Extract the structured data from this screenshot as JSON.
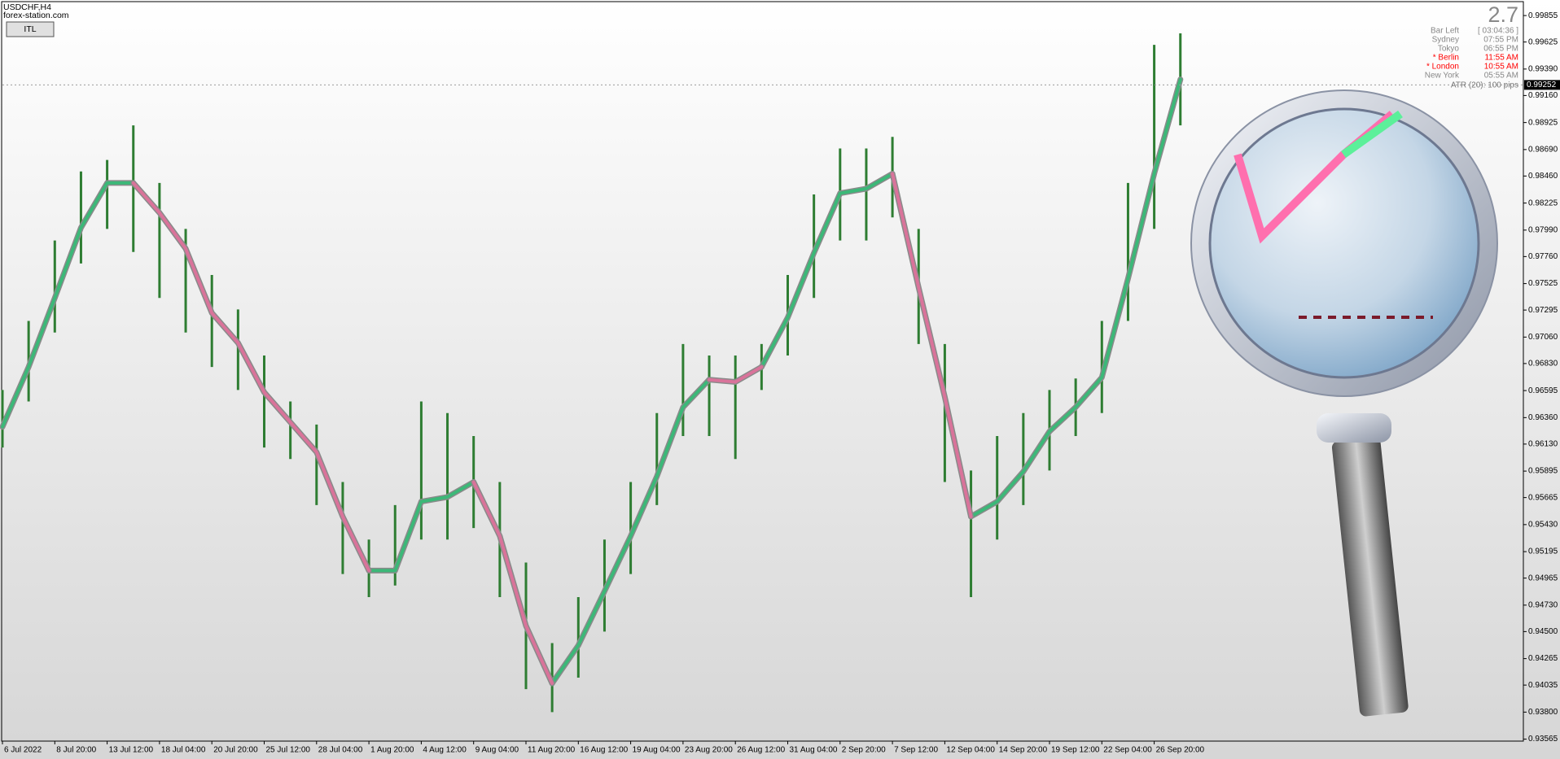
{
  "header": {
    "symbol": "USDCHF,H4",
    "site": "forex-station.com",
    "button": "ITL"
  },
  "info": {
    "big": "2.7",
    "rows": [
      {
        "label": "Bar Left",
        "value": "[ 03:04:36 ]",
        "color": "#888888"
      },
      {
        "label": "Sydney",
        "value": "07:55 PM",
        "color": "#888888"
      },
      {
        "label": "Tokyo",
        "value": "06:55 PM",
        "color": "#888888"
      },
      {
        "label": "* Berlin",
        "value": "11:55 AM",
        "color": "#ff0000"
      },
      {
        "label": "* London",
        "value": "10:55 AM",
        "color": "#ff0000"
      },
      {
        "label": "New York",
        "value": "05:55 AM",
        "color": "#888888"
      }
    ],
    "atr": "ATR (20): 100 pips"
  },
  "chart_data": {
    "type": "line",
    "categories": [
      "6 Jul 2022",
      null,
      "8 Jul 20:00",
      null,
      "13 Jul 12:00",
      null,
      "18 Jul 04:00",
      null,
      "20 Jul 20:00",
      null,
      "25 Jul 12:00",
      null,
      "28 Jul 04:00",
      null,
      "1 Aug 20:00",
      null,
      "4 Aug 12:00",
      null,
      "9 Aug 04:00",
      null,
      "11 Aug 20:00",
      null,
      "16 Aug 12:00",
      null,
      "19 Aug 04:00",
      null,
      "23 Aug 20:00",
      null,
      "26 Aug 12:00",
      null,
      "31 Aug 04:00",
      null,
      "2 Sep 20:00",
      null,
      "7 Sep 12:00",
      null,
      "12 Sep 04:00",
      null,
      "14 Sep 20:00",
      null,
      "19 Sep 12:00",
      null,
      "22 Sep 04:00",
      null,
      "26 Sep 20:00",
      null
    ],
    "highs": [
      0.966,
      0.972,
      0.979,
      0.985,
      0.986,
      0.989,
      0.984,
      0.98,
      0.976,
      0.973,
      0.969,
      0.965,
      0.963,
      0.958,
      0.953,
      0.956,
      0.965,
      0.964,
      0.962,
      0.958,
      0.951,
      0.944,
      0.948,
      0.953,
      0.958,
      0.964,
      0.97,
      0.969,
      0.969,
      0.97,
      0.976,
      0.983,
      0.987,
      0.987,
      0.988,
      0.98,
      0.97,
      0.959,
      0.962,
      0.964,
      0.966,
      0.967,
      0.972,
      0.984,
      0.996,
      0.997
    ],
    "lows": [
      0.961,
      0.965,
      0.971,
      0.977,
      0.98,
      0.978,
      0.974,
      0.971,
      0.968,
      0.966,
      0.961,
      0.96,
      0.956,
      0.95,
      0.948,
      0.949,
      0.953,
      0.953,
      0.954,
      0.948,
      0.94,
      0.938,
      0.941,
      0.945,
      0.95,
      0.956,
      0.962,
      0.962,
      0.96,
      0.966,
      0.969,
      0.974,
      0.979,
      0.979,
      0.981,
      0.97,
      0.958,
      0.948,
      0.953,
      0.956,
      0.959,
      0.962,
      0.964,
      0.972,
      0.98,
      0.989
    ],
    "range_color": "#2e7d32",
    "series": [
      {
        "color": "#3cb878",
        "values": [
          0.9628,
          0.968,
          0.974,
          0.9801,
          0.984,
          0.984,
          null,
          null,
          null,
          null,
          null,
          null,
          null,
          null,
          0.9503,
          0.9503,
          0.9563,
          0.9567,
          0.958,
          null,
          null,
          0.9405,
          0.9438,
          0.9485,
          0.9533,
          0.9585,
          0.9645,
          0.9669,
          null,
          0.968,
          0.9723,
          0.9779,
          0.9831,
          0.9835,
          0.9848,
          null,
          null,
          0.955,
          0.9563,
          0.9589,
          0.9624,
          0.9645,
          0.9671,
          0.9757,
          0.9848,
          0.993
        ]
      },
      {
        "color": "#d9739a",
        "values": [
          null,
          null,
          null,
          null,
          null,
          0.984,
          0.9814,
          0.9783,
          0.9727,
          0.9701,
          0.9658,
          0.9632,
          0.9606,
          0.955,
          0.9503,
          null,
          null,
          null,
          0.958,
          0.9533,
          0.9455,
          0.9405,
          null,
          null,
          null,
          null,
          null,
          0.9669,
          0.9667,
          0.968,
          null,
          null,
          null,
          null,
          0.9848,
          0.9749,
          0.9654,
          0.955,
          null,
          null,
          null,
          null,
          null,
          null,
          null,
          null
        ]
      }
    ],
    "last_price": 0.99252,
    "ylim": [
      0.93548,
      0.99976
    ],
    "yticks": [
      {
        "value": 0.99855,
        "label": "0.99855"
      },
      {
        "value": 0.99625,
        "label": "0.99625"
      },
      {
        "value": 0.9939,
        "label": "0.99390"
      },
      {
        "value": 0.9916,
        "label": "0.99160"
      },
      {
        "value": 0.98925,
        "label": "0.98925"
      },
      {
        "value": 0.9869,
        "label": "0.98690"
      },
      {
        "value": 0.9846,
        "label": "0.98460"
      },
      {
        "value": 0.98225,
        "label": "0.98225"
      },
      {
        "value": 0.9799,
        "label": "0.97990"
      },
      {
        "value": 0.9776,
        "label": "0.97760"
      },
      {
        "value": 0.97525,
        "label": "0.97525"
      },
      {
        "value": 0.97295,
        "label": "0.97295"
      },
      {
        "value": 0.9706,
        "label": "0.97060"
      },
      {
        "value": 0.9683,
        "label": "0.96830"
      },
      {
        "value": 0.96595,
        "label": "0.96595"
      },
      {
        "value": 0.9636,
        "label": "0.96360"
      },
      {
        "value": 0.9613,
        "label": "0.96130"
      },
      {
        "value": 0.95895,
        "label": "0.95895"
      },
      {
        "value": 0.95665,
        "label": "0.95665"
      },
      {
        "value": 0.9543,
        "label": "0.95430"
      },
      {
        "value": 0.95195,
        "label": "0.95195"
      },
      {
        "value": 0.94965,
        "label": "0.94965"
      },
      {
        "value": 0.9473,
        "label": "0.94730"
      },
      {
        "value": 0.945,
        "label": "0.94500"
      },
      {
        "value": 0.94265,
        "label": "0.94265"
      },
      {
        "value": 0.94035,
        "label": "0.94035"
      },
      {
        "value": 0.938,
        "label": "0.93800"
      },
      {
        "value": 0.93565,
        "label": "0.93565"
      }
    ]
  }
}
